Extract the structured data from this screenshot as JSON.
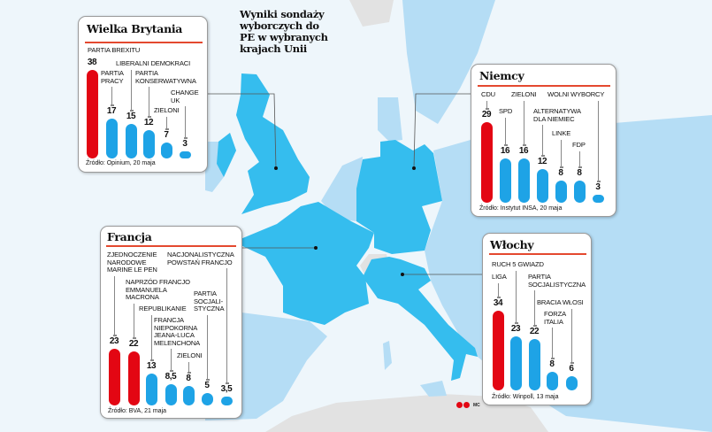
{
  "title": "Wyniki sondaży wyborczych do PE w wybranych krajach Unii",
  "colors": {
    "leader": "#e30613",
    "other": "#1ea3e6",
    "highlight_country": "#35bdee",
    "eu_country": "#b5ddf5",
    "non_eu": "#e2e2e2",
    "sea": "#eef6fb"
  },
  "logo_text": "MC",
  "chart_data": [
    {
      "type": "bar",
      "id": "uk",
      "title": "Wielka Brytania",
      "source": "Źródło: Opinium, 20 maja",
      "categories": [
        "PARTIA BREXITU",
        "PARTIA\nPRACY",
        "LIBERALNI DEMOKRACI",
        "PARTIA\nKONSERWATYWNA",
        "ZIELONI",
        "CHANGE\nUK"
      ],
      "values": [
        38,
        17,
        15,
        12,
        7,
        3
      ],
      "value_labels": [
        "38",
        "17",
        "15",
        "12",
        "7",
        "3"
      ],
      "leader_index": 0
    },
    {
      "type": "bar",
      "id": "de",
      "title": "Niemcy",
      "source": "Źródło: Instytut INSA, 20 maja",
      "categories": [
        "CDU",
        "SPD",
        "ZIELONI",
        "ALTERNATYWA\nDLA NIEMIEC",
        "LINKE",
        "FDP",
        "WOLNI WYBORCY"
      ],
      "values": [
        29,
        16,
        16,
        12,
        8,
        8,
        3
      ],
      "value_labels": [
        "29",
        "16",
        "16",
        "12",
        "8",
        "8",
        "3"
      ],
      "leader_index": 0
    },
    {
      "type": "bar",
      "id": "fr",
      "title": "Francja",
      "source": "Źródło: BVA, 21 maja",
      "categories": [
        "ZJEDNOCZENIE\nNARODOWE\nMARINE LE PEN",
        "NAPRZÓD FRANCJO\nEMMANUELA\nMACRONA",
        "REPUBLIKANIE",
        "FRANCJA\nNIEPOKORNA\nJEANA-LUCA\nMELENCHONA",
        "ZIELONI",
        "PARTIA\nSOCJALI-\nSTYCZNA",
        "NACJONALISTYCZNA\nPOWSTAŃ FRANCJO"
      ],
      "values": [
        23,
        22,
        13,
        8.5,
        8,
        5,
        3.5
      ],
      "value_labels": [
        "23",
        "22",
        "13",
        "8,5",
        "8",
        "5",
        "3,5"
      ],
      "leader_index": [
        0,
        1
      ]
    },
    {
      "type": "bar",
      "id": "it",
      "title": "Włochy",
      "source": "Źródło: Winpoll, 13 maja",
      "categories": [
        "LIGA",
        "RUCH 5 GWIAZD",
        "PARTIA\nSOCJALISTYCZNA",
        "FORZA\nITALIA",
        "BRACIA WŁOSI"
      ],
      "values": [
        34,
        23,
        22,
        8,
        6
      ],
      "value_labels": [
        "34",
        "23",
        "22",
        "8",
        "6"
      ],
      "leader_index": 0
    }
  ]
}
